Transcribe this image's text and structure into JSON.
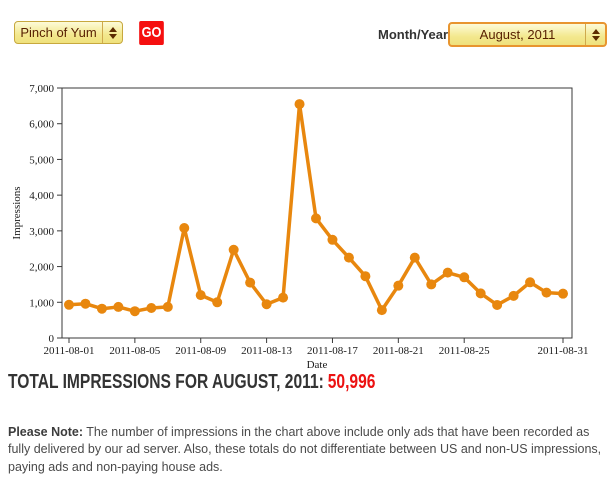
{
  "header": {
    "site_select": {
      "value": "Pinch of Yum"
    },
    "go_button": "GO",
    "month_label": "Month/Year:",
    "month_select": {
      "value": "August, 2011"
    }
  },
  "chart_data": {
    "type": "line",
    "title": "",
    "xlabel": "Date",
    "ylabel": "Impressions",
    "ylim": [
      0,
      7000
    ],
    "y_tick_step": 1000,
    "grid": false,
    "legend": "none",
    "line_color": "#e8870e",
    "x": [
      "2011-08-01",
      "2011-08-02",
      "2011-08-03",
      "2011-08-04",
      "2011-08-05",
      "2011-08-06",
      "2011-08-07",
      "2011-08-08",
      "2011-08-09",
      "2011-08-10",
      "2011-08-11",
      "2011-08-12",
      "2011-08-13",
      "2011-08-14",
      "2011-08-15",
      "2011-08-16",
      "2011-08-17",
      "2011-08-18",
      "2011-08-19",
      "2011-08-20",
      "2011-08-21",
      "2011-08-22",
      "2011-08-23",
      "2011-08-24",
      "2011-08-25",
      "2011-08-26",
      "2011-08-27",
      "2011-08-28",
      "2011-08-29",
      "2011-08-30",
      "2011-08-31"
    ],
    "values": [
      930,
      960,
      820,
      870,
      750,
      840,
      870,
      3080,
      1200,
      1000,
      2470,
      1550,
      945,
      1130,
      6550,
      3350,
      2750,
      2250,
      1730,
      780,
      1465,
      2250,
      1500,
      1830,
      1700,
      1250,
      925,
      1180,
      1560,
      1270,
      1241
    ],
    "x_tick_days": [
      1,
      5,
      9,
      13,
      17,
      21,
      25,
      31
    ],
    "x_tick_labels": [
      "2011-08-01",
      "2011-08-05",
      "2011-08-09",
      "2011-08-13",
      "2011-08-17",
      "2011-08-21",
      "2011-08-25",
      "2011-08-31"
    ]
  },
  "summary": {
    "label": "TOTAL IMPRESSIONS FOR AUGUST, 2011:",
    "value": "50,996"
  },
  "note": {
    "prefix": "Please Note:",
    "body": "The number of impressions in the chart above include only ads that have been recorded as fully delivered by our ad server. Also, these totals do not differentiate between US and non-US impressions, paying ads and non-paying house ads."
  }
}
